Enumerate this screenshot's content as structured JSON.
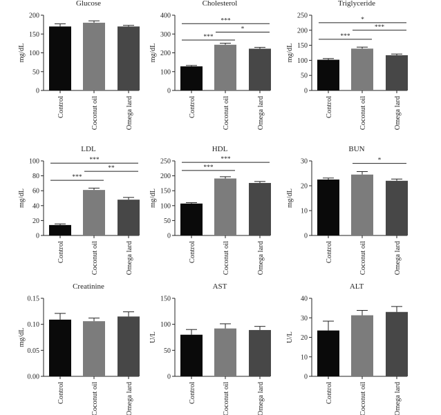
{
  "categories": [
    "Control",
    "Coconut oil",
    "Omega lard"
  ],
  "colors": {
    "Control": "#0a0a0a",
    "Coconut oil": "#7c7c7c",
    "Omega lard": "#474747"
  },
  "chart_data": [
    {
      "type": "bar",
      "title": "Glucose",
      "ylabel": "mg/dL",
      "ylim": [
        0,
        200
      ],
      "yticks": [
        "0",
        "50",
        "100",
        "150",
        "200"
      ],
      "ytick_values": [
        0,
        50,
        100,
        150,
        200
      ],
      "values": [
        170,
        180,
        170
      ],
      "errors": [
        7,
        5,
        3
      ],
      "significance": []
    },
    {
      "type": "bar",
      "title": "Cholesterol",
      "ylabel": "mg/dL",
      "ylim": [
        0,
        400
      ],
      "yticks": [
        "0",
        "100",
        "200",
        "300",
        "400"
      ],
      "ytick_values": [
        0,
        100,
        200,
        300,
        400
      ],
      "values": [
        128,
        243,
        222
      ],
      "errors": [
        5,
        8,
        7
      ],
      "significance": [
        {
          "from": 0,
          "to": 2,
          "label": "***",
          "level": 355
        },
        {
          "from": 1,
          "to": 2,
          "label": "*",
          "level": 310
        },
        {
          "from": 0,
          "to": 1,
          "label": "***",
          "level": 268
        }
      ]
    },
    {
      "type": "bar",
      "title": "Triglyceride",
      "ylabel": "mg/dL",
      "ylim": [
        0,
        250
      ],
      "yticks": [
        "0",
        "50",
        "100",
        "150",
        "200",
        "250"
      ],
      "ytick_values": [
        0,
        50,
        100,
        150,
        200,
        250
      ],
      "values": [
        102,
        139,
        117
      ],
      "errors": [
        4,
        5,
        4
      ],
      "significance": [
        {
          "from": 0,
          "to": 2,
          "label": "*",
          "level": 225
        },
        {
          "from": 1,
          "to": 2,
          "label": "***",
          "level": 200
        },
        {
          "from": 0,
          "to": 1,
          "label": "***",
          "level": 170
        }
      ]
    },
    {
      "type": "bar",
      "title": "LDL",
      "ylabel": "mg/dL",
      "ylim": [
        0,
        100
      ],
      "yticks": [
        "0",
        "20",
        "40",
        "60",
        "80",
        "100"
      ],
      "ytick_values": [
        0,
        20,
        40,
        60,
        80,
        100
      ],
      "values": [
        14,
        61,
        48
      ],
      "errors": [
        1.5,
        2.5,
        3
      ],
      "significance": [
        {
          "from": 0,
          "to": 2,
          "label": "***",
          "level": 97
        },
        {
          "from": 1,
          "to": 2,
          "label": "**",
          "level": 86
        },
        {
          "from": 0,
          "to": 1,
          "label": "***",
          "level": 74
        }
      ]
    },
    {
      "type": "bar",
      "title": "HDL",
      "ylabel": "mg/dL",
      "ylim": [
        0,
        250
      ],
      "yticks": [
        "0",
        "50",
        "100",
        "150",
        "200",
        "250"
      ],
      "ytick_values": [
        0,
        50,
        100,
        150,
        200,
        250
      ],
      "values": [
        107,
        191,
        176
      ],
      "errors": [
        3,
        6,
        5
      ],
      "significance": [
        {
          "from": 0,
          "to": 2,
          "label": "***",
          "level": 245
        },
        {
          "from": 0,
          "to": 1,
          "label": "***",
          "level": 218
        }
      ]
    },
    {
      "type": "bar",
      "title": "BUN",
      "ylabel": "mg/dL",
      "ylim": [
        0,
        30
      ],
      "yticks": [
        "0",
        "10",
        "20",
        "30"
      ],
      "ytick_values": [
        0,
        10,
        20,
        30
      ],
      "values": [
        22.5,
        24.5,
        22
      ],
      "errors": [
        0.6,
        1.2,
        0.7
      ],
      "significance": [
        {
          "from": 1,
          "to": 2,
          "label": "*",
          "level": 29
        }
      ]
    },
    {
      "type": "bar",
      "title": "Creatinine",
      "ylabel": "mg/dL",
      "ylim": [
        0,
        0.15
      ],
      "yticks": [
        "0.00",
        "0.05",
        "0.10",
        "0.15"
      ],
      "ytick_values": [
        0,
        0.05,
        0.1,
        0.15
      ],
      "values": [
        0.109,
        0.106,
        0.115
      ],
      "errors": [
        0.012,
        0.006,
        0.009
      ],
      "significance": []
    },
    {
      "type": "bar",
      "title": "AST",
      "ylabel": "U/L",
      "ylim": [
        0,
        150
      ],
      "yticks": [
        "0",
        "50",
        "100",
        "150"
      ],
      "ytick_values": [
        0,
        50,
        100,
        150
      ],
      "values": [
        80,
        92,
        89
      ],
      "errors": [
        10,
        9,
        7
      ],
      "significance": []
    },
    {
      "type": "bar",
      "title": "ALT",
      "ylabel": "U/L",
      "ylim": [
        0,
        40
      ],
      "yticks": [
        "0",
        "10",
        "20",
        "30",
        "40"
      ],
      "ytick_values": [
        0,
        10,
        20,
        30,
        40
      ],
      "values": [
        23.5,
        31.3,
        33
      ],
      "errors": [
        4.8,
        2.5,
        2.8
      ],
      "significance": []
    }
  ]
}
